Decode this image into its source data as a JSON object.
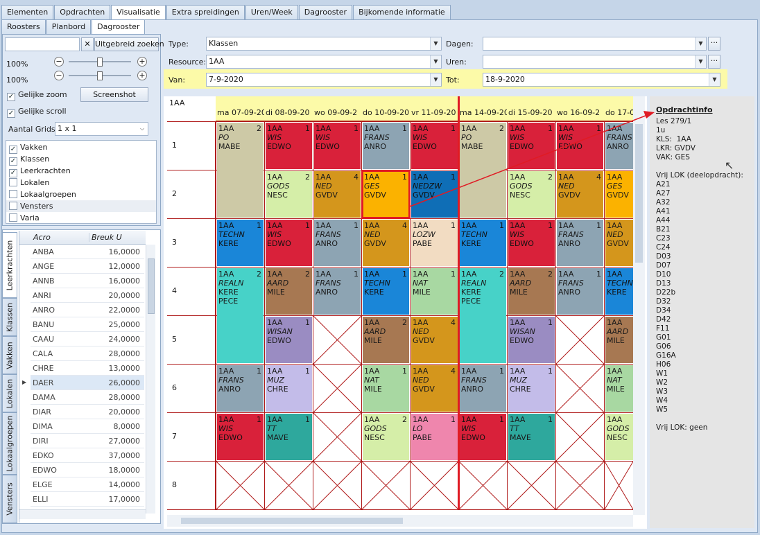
{
  "top_tabs": [
    "Elementen",
    "Opdrachten",
    "Visualisatie",
    "Extra spreidingen",
    "Uren/Week",
    "Dagrooster",
    "Bijkomende informatie"
  ],
  "sub_tabs": [
    "Roosters",
    "Planbord",
    "Dagrooster"
  ],
  "left": {
    "search_value": "",
    "clear_glyph": "✕",
    "extended_search": "Uitgebreid zoeken",
    "zoom1": "100%",
    "zoom2": "100%",
    "minus": "−",
    "plus": "+",
    "gelijke_zoom": "Gelijke zoom",
    "gelijke_scroll": "Gelijke scroll",
    "screenshot": "Screenshot",
    "aantal_grids_label": "Aantal Grids",
    "aantal_grids_value": "1 x 1",
    "layers": [
      {
        "label": "Vakken",
        "checked": true
      },
      {
        "label": "Klassen",
        "checked": true
      },
      {
        "label": "Leerkrachten",
        "checked": true
      },
      {
        "label": "Lokalen",
        "checked": false
      },
      {
        "label": "Lokaalgroepen",
        "checked": false
      },
      {
        "label": "Vensters",
        "checked": false
      },
      {
        "label": "Varia",
        "checked": false
      }
    ],
    "vtabs": [
      "Leerkrachten",
      "Klassen",
      "Vakken",
      "Lokalen",
      "Lokaalgroepen",
      "Vensters"
    ],
    "table_headers": [
      "Acro",
      "Breuk U"
    ],
    "rows": [
      [
        "ANBA",
        "16,0000"
      ],
      [
        "ANGE",
        "12,0000"
      ],
      [
        "ANNB",
        "16,0000"
      ],
      [
        "ANRI",
        "20,0000"
      ],
      [
        "ANRO",
        "22,0000"
      ],
      [
        "BANU",
        "25,0000"
      ],
      [
        "CAAU",
        "24,0000"
      ],
      [
        "CALA",
        "28,0000"
      ],
      [
        "CHRE",
        "13,0000"
      ],
      [
        "DAER",
        "26,0000"
      ],
      [
        "DAMA",
        "28,0000"
      ],
      [
        "DIAR",
        "20,0000"
      ],
      [
        "DIMA",
        "8,0000"
      ],
      [
        "DIRI",
        "27,0000"
      ],
      [
        "EDKO",
        "37,0000"
      ],
      [
        "EDWO",
        "18,0000"
      ],
      [
        "ELGE",
        "14,0000"
      ],
      [
        "ELLI",
        "17,0000"
      ]
    ],
    "selected_row": "DAER",
    "row_pointer": "▶"
  },
  "filters": {
    "type_label": "Type:",
    "type_value": "Klassen",
    "resource_label": "Resource:",
    "resource_value": "1AA",
    "van_label": "Van:",
    "van_value": "7-9-2020",
    "tot_label": "Tot:",
    "tot_value": "18-9-2020",
    "dagen_label": "Dagen:",
    "dagen_value": "",
    "uren_label": "Uren:",
    "uren_value": "",
    "ellipsis": "···",
    "dropdown_glyph": "▼"
  },
  "grid": {
    "resource": "1AA",
    "days": [
      "ma 07-09-20",
      "di 08-09-20",
      "wo 09-09-2",
      "do 10-09-20",
      "vr 11-09-20",
      "ma 14-09-20",
      "di 15-09-20",
      "wo 16-09-2",
      "do 17-0"
    ],
    "periods": [
      "1",
      "2",
      "3",
      "4",
      "5",
      "6",
      "7",
      "8"
    ],
    "lessons": [
      {
        "d": 0,
        "p": 0,
        "span": 2,
        "c": "1AA",
        "s": "PO",
        "t": "MABE",
        "n": "2",
        "color": "#cdc9a6"
      },
      {
        "d": 1,
        "p": 0,
        "c": "1AA",
        "s": "WIS",
        "t": "EDWO",
        "n": "1",
        "color": "#d9213a"
      },
      {
        "d": 2,
        "p": 0,
        "c": "1AA",
        "s": "WIS",
        "t": "EDWO",
        "n": "1",
        "color": "#d9213a"
      },
      {
        "d": 3,
        "p": 0,
        "c": "1AA",
        "s": "FRANS",
        "t": "ANRO",
        "n": "1",
        "color": "#8da4b3"
      },
      {
        "d": 4,
        "p": 0,
        "c": "1AA",
        "s": "WIS",
        "t": "EDWO",
        "n": "1",
        "color": "#d9213a"
      },
      {
        "d": 5,
        "p": 0,
        "span": 2,
        "c": "1AA",
        "s": "PO",
        "t": "MABE",
        "n": "2",
        "color": "#cdc9a6"
      },
      {
        "d": 6,
        "p": 0,
        "c": "1AA",
        "s": "WIS",
        "t": "EDWO",
        "n": "1",
        "color": "#d9213a"
      },
      {
        "d": 7,
        "p": 0,
        "c": "1AA",
        "s": "WIS",
        "t": "EDWO",
        "n": "1",
        "color": "#d9213a"
      },
      {
        "d": 8,
        "p": 0,
        "c": "1AA",
        "s": "FRANS",
        "t": "ANRO",
        "n": "",
        "color": "#8da4b3"
      },
      {
        "d": 1,
        "p": 1,
        "c": "1AA",
        "s": "GODS",
        "t": "NESC",
        "n": "2",
        "color": "#d5eea8"
      },
      {
        "d": 2,
        "p": 1,
        "c": "1AA",
        "s": "NED",
        "t": "GVDV",
        "n": "4",
        "color": "#d4961c"
      },
      {
        "d": 3,
        "p": 1,
        "c": "1AA",
        "s": "GES",
        "t": "GVDV",
        "n": "1",
        "color": "#fbb200"
      },
      {
        "d": 4,
        "p": 1,
        "c": "1AA",
        "s": "NEDZW",
        "t": "GVDV",
        "n": "1",
        "color": "#0f6eb6"
      },
      {
        "d": 6,
        "p": 1,
        "c": "1AA",
        "s": "GODS",
        "t": "NESC",
        "n": "2",
        "color": "#d5eea8"
      },
      {
        "d": 7,
        "p": 1,
        "c": "1AA",
        "s": "NED",
        "t": "GVDV",
        "n": "4",
        "color": "#d4961c"
      },
      {
        "d": 8,
        "p": 1,
        "c": "1AA",
        "s": "GES",
        "t": "GVDV",
        "n": "",
        "color": "#fbb200"
      },
      {
        "d": 0,
        "p": 2,
        "c": "1AA",
        "s": "TECHN",
        "t": "KERE",
        "n": "1",
        "color": "#1a86d8"
      },
      {
        "d": 1,
        "p": 2,
        "c": "1AA",
        "s": "WIS",
        "t": "EDWO",
        "n": "1",
        "color": "#d9213a"
      },
      {
        "d": 2,
        "p": 2,
        "c": "1AA",
        "s": "FRANS",
        "t": "ANRO",
        "n": "1",
        "color": "#8da4b3"
      },
      {
        "d": 3,
        "p": 2,
        "c": "1AA",
        "s": "NED",
        "t": "GVDV",
        "n": "4",
        "color": "#d4961c"
      },
      {
        "d": 4,
        "p": 2,
        "c": "1AA",
        "s": "LOZW",
        "t": "PABE",
        "n": "1",
        "color": "#f2dcc2"
      },
      {
        "d": 5,
        "p": 2,
        "c": "1AA",
        "s": "TECHN",
        "t": "KERE",
        "n": "1",
        "color": "#1a86d8"
      },
      {
        "d": 6,
        "p": 2,
        "c": "1AA",
        "s": "WIS",
        "t": "EDWO",
        "n": "1",
        "color": "#d9213a"
      },
      {
        "d": 7,
        "p": 2,
        "c": "1AA",
        "s": "FRANS",
        "t": "ANRO",
        "n": "1",
        "color": "#8da4b3"
      },
      {
        "d": 8,
        "p": 2,
        "c": "1AA",
        "s": "NED",
        "t": "GVDV",
        "n": "",
        "color": "#d4961c"
      },
      {
        "d": 0,
        "p": 3,
        "span": 2,
        "c": "1AA",
        "s": "REALN",
        "t": "KERE",
        "t2": "PECE",
        "n": "2",
        "color": "#47d2c8"
      },
      {
        "d": 1,
        "p": 3,
        "c": "1AA",
        "s": "AARD",
        "t": "MILE",
        "n": "2",
        "color": "#a77852"
      },
      {
        "d": 2,
        "p": 3,
        "c": "1AA",
        "s": "FRANS",
        "t": "ANRO",
        "n": "1",
        "color": "#8da4b3"
      },
      {
        "d": 3,
        "p": 3,
        "c": "1AA",
        "s": "TECHN",
        "t": "KERE",
        "n": "1",
        "color": "#1a86d8"
      },
      {
        "d": 4,
        "p": 3,
        "c": "1AA",
        "s": "NAT",
        "t": "MILE",
        "n": "1",
        "color": "#a8d8a2"
      },
      {
        "d": 5,
        "p": 3,
        "span": 2,
        "c": "1AA",
        "s": "REALN",
        "t": "KERE",
        "t2": "PECE",
        "n": "2",
        "color": "#47d2c8"
      },
      {
        "d": 6,
        "p": 3,
        "c": "1AA",
        "s": "AARD",
        "t": "MILE",
        "n": "2",
        "color": "#a77852"
      },
      {
        "d": 7,
        "p": 3,
        "c": "1AA",
        "s": "FRANS",
        "t": "ANRO",
        "n": "1",
        "color": "#8da4b3"
      },
      {
        "d": 8,
        "p": 3,
        "c": "1AA",
        "s": "TECHN",
        "t": "KERE",
        "n": "",
        "color": "#1a86d8"
      },
      {
        "d": 1,
        "p": 4,
        "c": "1AA",
        "s": "WISAN",
        "t": "EDWO",
        "n": "1",
        "color": "#9a8cc2"
      },
      {
        "d": 3,
        "p": 4,
        "c": "1AA",
        "s": "AARD",
        "t": "MILE",
        "n": "2",
        "color": "#a77852"
      },
      {
        "d": 4,
        "p": 4,
        "c": "1AA",
        "s": "NED",
        "t": "GVDV",
        "n": "4",
        "color": "#d4961c"
      },
      {
        "d": 6,
        "p": 4,
        "c": "1AA",
        "s": "WISAN",
        "t": "EDWO",
        "n": "1",
        "color": "#9a8cc2"
      },
      {
        "d": 8,
        "p": 4,
        "c": "1AA",
        "s": "AARD",
        "t": "MILE",
        "n": "",
        "color": "#a77852"
      },
      {
        "d": 0,
        "p": 5,
        "c": "1AA",
        "s": "FRANS",
        "t": "ANRO",
        "n": "1",
        "color": "#8da4b3"
      },
      {
        "d": 1,
        "p": 5,
        "c": "1AA",
        "s": "MUZ",
        "t": "CHRE",
        "n": "1",
        "color": "#c3bce9"
      },
      {
        "d": 3,
        "p": 5,
        "c": "1AA",
        "s": "NAT",
        "t": "MILE",
        "n": "1",
        "color": "#a8d8a2"
      },
      {
        "d": 4,
        "p": 5,
        "c": "1AA",
        "s": "NED",
        "t": "GVDV",
        "n": "4",
        "color": "#d4961c"
      },
      {
        "d": 5,
        "p": 5,
        "c": "1AA",
        "s": "FRANS",
        "t": "ANRO",
        "n": "1",
        "color": "#8da4b3"
      },
      {
        "d": 6,
        "p": 5,
        "c": "1AA",
        "s": "MUZ",
        "t": "CHRE",
        "n": "1",
        "color": "#c3bce9"
      },
      {
        "d": 8,
        "p": 5,
        "c": "1AA",
        "s": "NAT",
        "t": "MILE",
        "n": "",
        "color": "#a8d8a2"
      },
      {
        "d": 0,
        "p": 6,
        "c": "1AA",
        "s": "WIS",
        "t": "EDWO",
        "n": "1",
        "color": "#d9213a"
      },
      {
        "d": 1,
        "p": 6,
        "c": "1AA",
        "s": "TT",
        "t": "MAVE",
        "n": "1",
        "color": "#2ea89d"
      },
      {
        "d": 3,
        "p": 6,
        "c": "1AA",
        "s": "GODS",
        "t": "NESC",
        "n": "2",
        "color": "#d5eea8"
      },
      {
        "d": 4,
        "p": 6,
        "c": "1AA",
        "s": "LO",
        "t": "PABE",
        "n": "1",
        "color": "#ef86ad"
      },
      {
        "d": 5,
        "p": 6,
        "c": "1AA",
        "s": "WIS",
        "t": "EDWO",
        "n": "1",
        "color": "#d9213a"
      },
      {
        "d": 6,
        "p": 6,
        "c": "1AA",
        "s": "TT",
        "t": "MAVE",
        "n": "1",
        "color": "#2ea89d"
      },
      {
        "d": 8,
        "p": 6,
        "c": "1AA",
        "s": "GODS",
        "t": "NESC",
        "n": "",
        "color": "#d5eea8"
      }
    ],
    "empty": [
      [
        2,
        4
      ],
      [
        7,
        4
      ],
      [
        2,
        5
      ],
      [
        7,
        5
      ],
      [
        2,
        6
      ],
      [
        7,
        6
      ],
      [
        0,
        7
      ],
      [
        1,
        7
      ],
      [
        2,
        7
      ],
      [
        3,
        7
      ],
      [
        4,
        7
      ],
      [
        5,
        7
      ],
      [
        6,
        7
      ],
      [
        7,
        7
      ],
      [
        8,
        7
      ]
    ],
    "selected": [
      3,
      1
    ]
  },
  "info": {
    "title": "Opdrachtinfo",
    "lines": [
      "Les 279/1",
      "1u",
      "KLS:  1AA",
      "LKR: GVDV",
      "VAK: GES",
      "",
      "Vrij LOK (deelopdracht):",
      "A21",
      "A27",
      "A32",
      "A41",
      "A44",
      "B21",
      "C23",
      "C24",
      "D03",
      "D07",
      "D10",
      "D13",
      "D22b",
      "D32",
      "D34",
      "D42",
      "F11",
      "G01",
      "G06",
      "G16A",
      "H06",
      "W1",
      "W2",
      "W3",
      "W4",
      "W5",
      "",
      "Vrij LOK: geen"
    ]
  },
  "colors": {
    "highlight": "#fcfaa8",
    "accent_red": "#e01b24",
    "gridline": "#b01c1c"
  }
}
